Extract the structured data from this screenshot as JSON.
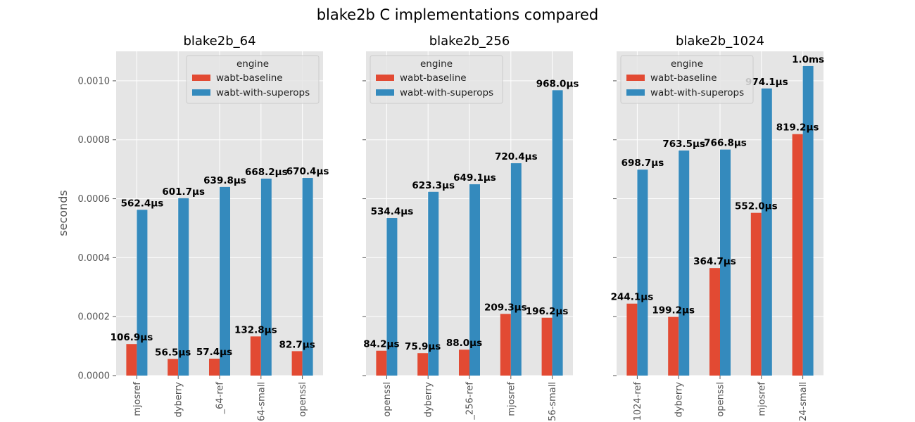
{
  "chart_data": {
    "type": "bar",
    "title": "blake2b C implementations compared",
    "ylabel": "seconds",
    "ylim": [
      0,
      0.0011
    ],
    "yticks": [
      "0.0000",
      "0.0002",
      "0.0004",
      "0.0006",
      "0.0008",
      "0.0010"
    ],
    "ytick_values": [
      0,
      0.0002,
      0.0004,
      0.0006,
      0.0008,
      0.001
    ],
    "grid": true,
    "legend_title": "engine",
    "legend_placement": "upper",
    "series_colors": {
      "wabt-baseline": "#e24a33",
      "wabt-with-superops": "#348abd"
    },
    "panels": [
      {
        "title": "blake2b_64",
        "categories": [
          "mjosref",
          "dyberry",
          "_64-ref",
          "64-small",
          "openssl"
        ],
        "series": [
          {
            "name": "wabt-baseline",
            "values": [
              0.0001069,
              5.65e-05,
              5.74e-05,
              0.0001328,
              8.27e-05
            ],
            "labels": [
              "106.9µs",
              "56.5µs",
              "57.4µs",
              "132.8µs",
              "82.7µs"
            ]
          },
          {
            "name": "wabt-with-superops",
            "values": [
              0.0005624,
              0.0006017,
              0.0006398,
              0.0006682,
              0.0006704
            ],
            "labels": [
              "562.4µs",
              "601.7µs",
              "639.8µs",
              "668.2µs",
              "670.4µs"
            ]
          }
        ]
      },
      {
        "title": "blake2b_256",
        "categories": [
          "openssl",
          "dyberry",
          "_256-ref",
          "mjosref",
          "56-small"
        ],
        "series": [
          {
            "name": "wabt-baseline",
            "values": [
              8.42e-05,
              7.59e-05,
              8.8e-05,
              0.0002093,
              0.0001962
            ],
            "labels": [
              "84.2µs",
              "75.9µs",
              "88.0µs",
              "209.3µs",
              "196.2µs"
            ]
          },
          {
            "name": "wabt-with-superops",
            "values": [
              0.0005344,
              0.0006233,
              0.0006491,
              0.0007204,
              0.000968
            ],
            "labels": [
              "534.4µs",
              "623.3µs",
              "649.1µs",
              "720.4µs",
              "968.0µs"
            ]
          }
        ]
      },
      {
        "title": "blake2b_1024",
        "categories": [
          "1024-ref",
          "dyberry",
          "openssl",
          "mjosref",
          "24-small"
        ],
        "series": [
          {
            "name": "wabt-baseline",
            "values": [
              0.0002441,
              0.0001992,
              0.0003647,
              0.000552,
              0.0008192
            ],
            "labels": [
              "244.1µs",
              "199.2µs",
              "364.7µs",
              "552.0µs",
              "819.2µs"
            ]
          },
          {
            "name": "wabt-with-superops",
            "values": [
              0.0006987,
              0.0007635,
              0.0007668,
              0.0009741,
              0.00105
            ],
            "labels": [
              "698.7µs",
              "763.5µs",
              "766.8µs",
              "974.1µs",
              "1.0ms"
            ]
          }
        ]
      }
    ]
  }
}
